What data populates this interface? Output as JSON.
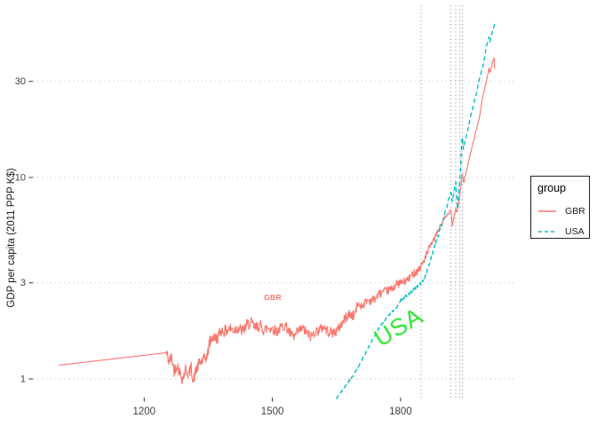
{
  "chart_data": {
    "type": "line",
    "title": "",
    "xlabel": "",
    "ylabel": "GDP per capita (2011 PPP K$)",
    "log_y": true,
    "x_ticks": [
      1200,
      1500,
      1800
    ],
    "y_ticks": [
      1,
      3,
      10,
      30
    ],
    "x_domain": [
      939,
      2066
    ],
    "y_domain": [
      0.82,
      71
    ],
    "grid": "horizontal-dotted",
    "legend_position": "right",
    "vlines": {
      "years": [
        1848,
        1918,
        1929,
        1939,
        1945
      ],
      "color": "#999999",
      "style": "dotted"
    },
    "series": [
      {
        "name": "GBR",
        "color": "#F8766D",
        "style": "solid",
        "noise": [
          [
            1252,
            1500,
            0.03
          ],
          [
            1500,
            1700,
            0.026
          ],
          [
            1700,
            1870,
            0.02
          ],
          [
            1870,
            1950,
            0.011
          ],
          [
            1950,
            2021,
            0.006
          ]
        ],
        "points": [
          [
            1000,
            1.17
          ],
          [
            1252,
            1.35
          ],
          [
            1258,
            1.22
          ],
          [
            1264,
            1.28
          ],
          [
            1270,
            1.1
          ],
          [
            1277,
            1.18
          ],
          [
            1284,
            1.06
          ],
          [
            1290,
            1.0
          ],
          [
            1297,
            1.12
          ],
          [
            1304,
            1.05
          ],
          [
            1310,
            1.14
          ],
          [
            1315,
            0.97
          ],
          [
            1322,
            1.12
          ],
          [
            1330,
            1.2
          ],
          [
            1340,
            1.25
          ],
          [
            1348,
            1.3
          ],
          [
            1352,
            1.5
          ],
          [
            1360,
            1.62
          ],
          [
            1370,
            1.58
          ],
          [
            1380,
            1.75
          ],
          [
            1390,
            1.72
          ],
          [
            1400,
            1.78
          ],
          [
            1410,
            1.75
          ],
          [
            1420,
            1.8
          ],
          [
            1430,
            1.72
          ],
          [
            1440,
            1.85
          ],
          [
            1450,
            1.9
          ],
          [
            1460,
            1.78
          ],
          [
            1470,
            1.85
          ],
          [
            1480,
            1.75
          ],
          [
            1490,
            1.8
          ],
          [
            1500,
            1.78
          ],
          [
            1510,
            1.72
          ],
          [
            1520,
            1.8
          ],
          [
            1530,
            1.85
          ],
          [
            1540,
            1.7
          ],
          [
            1550,
            1.6
          ],
          [
            1560,
            1.72
          ],
          [
            1570,
            1.78
          ],
          [
            1580,
            1.7
          ],
          [
            1590,
            1.62
          ],
          [
            1600,
            1.72
          ],
          [
            1610,
            1.75
          ],
          [
            1620,
            1.82
          ],
          [
            1630,
            1.72
          ],
          [
            1640,
            1.7
          ],
          [
            1650,
            1.72
          ],
          [
            1660,
            1.85
          ],
          [
            1670,
            2.0
          ],
          [
            1680,
            2.1
          ],
          [
            1690,
            2.05
          ],
          [
            1700,
            2.35
          ],
          [
            1710,
            2.3
          ],
          [
            1720,
            2.45
          ],
          [
            1730,
            2.45
          ],
          [
            1740,
            2.5
          ],
          [
            1750,
            2.65
          ],
          [
            1760,
            2.7
          ],
          [
            1770,
            2.75
          ],
          [
            1780,
            2.8
          ],
          [
            1790,
            2.95
          ],
          [
            1800,
            3.0
          ],
          [
            1810,
            3.05
          ],
          [
            1820,
            3.15
          ],
          [
            1830,
            3.35
          ],
          [
            1840,
            3.45
          ],
          [
            1850,
            3.7
          ],
          [
            1860,
            4.1
          ],
          [
            1870,
            4.6
          ],
          [
            1880,
            5.0
          ],
          [
            1890,
            5.6
          ],
          [
            1900,
            6.1
          ],
          [
            1913,
            6.7
          ],
          [
            1918,
            7.0
          ],
          [
            1921,
            5.8
          ],
          [
            1929,
            7.0
          ],
          [
            1932,
            6.7
          ],
          [
            1939,
            8.2
          ],
          [
            1944,
            10.3
          ],
          [
            1948,
            9.5
          ],
          [
            1955,
            11.0
          ],
          [
            1965,
            13.5
          ],
          [
            1975,
            16.5
          ],
          [
            1985,
            20.0
          ],
          [
            1990,
            24.0
          ],
          [
            2000,
            29.5
          ],
          [
            2007,
            35.0
          ],
          [
            2009,
            33.0
          ],
          [
            2016,
            38.0
          ],
          [
            2019,
            38.8
          ],
          [
            2020,
            34.6
          ]
        ]
      },
      {
        "name": "USA",
        "color": "#00BFC4",
        "style": "dashed",
        "noise": [
          [
            1650,
            1800,
            0.004
          ],
          [
            1800,
            1950,
            0.008
          ],
          [
            1950,
            2021,
            0.004
          ]
        ],
        "points": [
          [
            1650,
            0.8
          ],
          [
            1670,
            0.92
          ],
          [
            1690,
            1.05
          ],
          [
            1710,
            1.25
          ],
          [
            1730,
            1.5
          ],
          [
            1750,
            1.8
          ],
          [
            1770,
            2.05
          ],
          [
            1790,
            2.25
          ],
          [
            1800,
            2.45
          ],
          [
            1820,
            2.65
          ],
          [
            1840,
            2.9
          ],
          [
            1850,
            3.0
          ],
          [
            1860,
            3.3
          ],
          [
            1870,
            3.9
          ],
          [
            1880,
            4.6
          ],
          [
            1890,
            5.3
          ],
          [
            1900,
            6.2
          ],
          [
            1913,
            7.9
          ],
          [
            1918,
            8.5
          ],
          [
            1921,
            7.6
          ],
          [
            1929,
            9.5
          ],
          [
            1933,
            7.0
          ],
          [
            1939,
            9.8
          ],
          [
            1944,
            16.0
          ],
          [
            1947,
            14.0
          ],
          [
            1955,
            16.5
          ],
          [
            1965,
            20.5
          ],
          [
            1975,
            25.0
          ],
          [
            1985,
            31.0
          ],
          [
            1995,
            37.5
          ],
          [
            2000,
            44.0
          ],
          [
            2007,
            50.0
          ],
          [
            2009,
            47.5
          ],
          [
            2016,
            54.0
          ],
          [
            2020,
            58.0
          ]
        ]
      }
    ],
    "annotations": [
      {
        "text": "GBR",
        "color": "#F8766D",
        "x": 1500,
        "y": 2.55
      },
      {
        "text": "USA",
        "color": "#33E633",
        "x": 1795,
        "y": 1.8,
        "rotation": -31
      }
    ]
  },
  "axes": {
    "ylabel": "GDP per capita (2011 PPP K$)",
    "x_tick_labels": [
      "1200",
      "1500",
      "1800"
    ],
    "y_tick_labels": [
      "1",
      "3",
      "10",
      "30"
    ]
  },
  "legend": {
    "title": "group",
    "items": [
      {
        "label": "GBR"
      },
      {
        "label": "USA"
      }
    ]
  },
  "colors": {
    "gbr": "#F8766D",
    "usa": "#00BFC4",
    "annotation_green": "#33E633",
    "gridline": "#c2c2c2",
    "vline": "#999999",
    "tick_text": "#404040"
  }
}
